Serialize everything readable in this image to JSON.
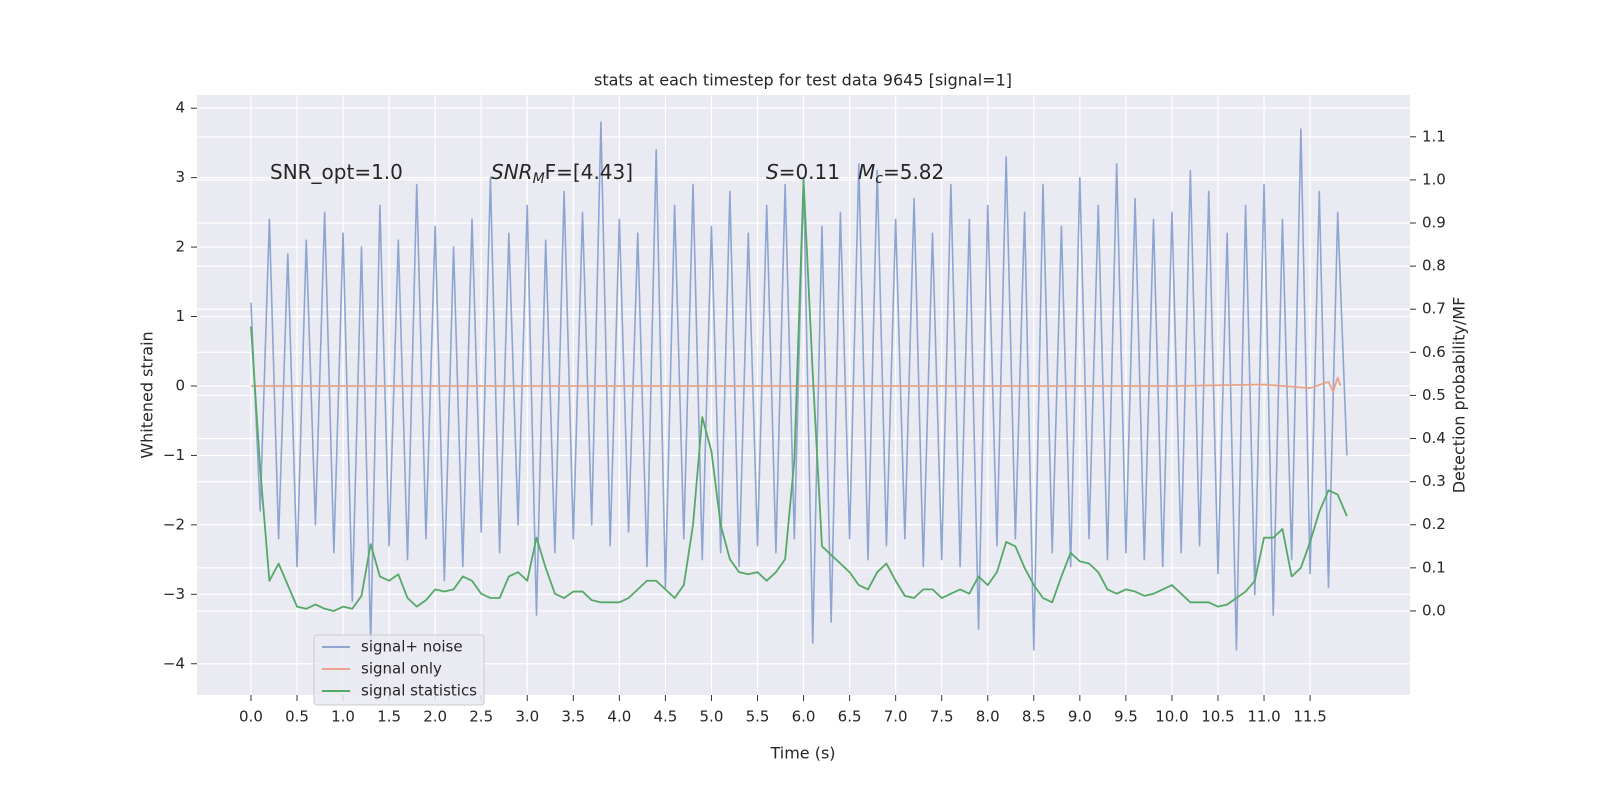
{
  "chart_data": {
    "type": "line",
    "title": "stats at each timestep for test data 9645 [signal=1]",
    "xlabel": "Time (s)",
    "ylabel": "Whitened strain",
    "y2label": "Detection probability/MF",
    "xlim": [
      -0.586,
      12.585
    ],
    "ylim": [
      -4.45,
      4.19
    ],
    "y2lim": [
      -0.195,
      1.197
    ],
    "xticks": [
      {
        "value": 0,
        "label": "0.0"
      },
      0.5,
      {
        "value": 1,
        "label": "1.0"
      },
      1.5,
      {
        "value": 2,
        "label": "2.0"
      },
      2.5,
      {
        "value": 3,
        "label": "3.0"
      },
      3.5,
      {
        "value": 4,
        "label": "4.0"
      },
      4.5,
      {
        "value": 5,
        "label": "5.0"
      },
      5.5,
      {
        "value": 6,
        "label": "6.0"
      },
      6.5,
      {
        "value": 7,
        "label": "7.0"
      },
      7.5,
      {
        "value": 8,
        "label": "8.0"
      },
      8.5,
      {
        "value": 9,
        "label": "9.0"
      },
      9.5,
      {
        "value": 10,
        "label": "10.0"
      },
      10.5,
      {
        "value": 11,
        "label": "11.0"
      },
      11.5
    ],
    "yticks": [
      {
        "value": -4,
        "label": "−4"
      },
      {
        "value": -3,
        "label": "−3"
      },
      {
        "value": -2,
        "label": "−2"
      },
      {
        "value": -1,
        "label": "−1"
      },
      0,
      1,
      2,
      3,
      4
    ],
    "y2ticks": [
      {
        "value": 0,
        "label": "0.0"
      },
      0.1,
      0.2,
      0.3,
      0.4,
      0.5,
      0.6,
      0.7,
      0.8,
      0.9,
      {
        "value": 1,
        "label": "1.0"
      },
      1.1
    ],
    "grid": true,
    "legend": "lower left",
    "annotations": [
      {
        "text": "SNR_opt=1.0"
      },
      {
        "base": "SNR",
        "sub": "M",
        "tail": "F=[4.43]",
        "italic": true
      },
      {
        "base": "S",
        "tail": "=0.11",
        "italic": true
      },
      {
        "base": "M",
        "sub": "c",
        "tail": "=5.82",
        "italic": true
      }
    ],
    "series": [
      {
        "name": "signal+ noise",
        "color": "#8fa5d1",
        "x": [
          0,
          0.1,
          0.2,
          0.3,
          0.4,
          0.5,
          0.6,
          0.7,
          0.8,
          0.9,
          1,
          1.1,
          1.2,
          1.3,
          1.4,
          1.5,
          1.6,
          1.7,
          1.8,
          1.9,
          2,
          2.1,
          2.2,
          2.3,
          2.4,
          2.5,
          2.6,
          2.7,
          2.8,
          2.9,
          3,
          3.1,
          3.2,
          3.3,
          3.4,
          3.5,
          3.6,
          3.7,
          3.8,
          3.9,
          4,
          4.1,
          4.2,
          4.3,
          4.4,
          4.5,
          4.6,
          4.7,
          4.8,
          4.9,
          5,
          5.1,
          5.2,
          5.3,
          5.4,
          5.5,
          5.6,
          5.7,
          5.8,
          5.9,
          6,
          6.1,
          6.2,
          6.3,
          6.4,
          6.5,
          6.6,
          6.7,
          6.8,
          6.9,
          7,
          7.1,
          7.2,
          7.3,
          7.4,
          7.5,
          7.6,
          7.7,
          7.8,
          7.9,
          8,
          8.1,
          8.2,
          8.3,
          8.4,
          8.5,
          8.6,
          8.7,
          8.8,
          8.9,
          9,
          9.1,
          9.2,
          9.3,
          9.4,
          9.5,
          9.6,
          9.7,
          9.8,
          9.9,
          10,
          10.1,
          10.2,
          10.3,
          10.4,
          10.5,
          10.6,
          10.7,
          10.8,
          10.9,
          11,
          11.1,
          11.2,
          11.3,
          11.4,
          11.5,
          11.6,
          11.7,
          11.8,
          11.9
        ],
        "values": [
          1.2,
          -1.8,
          2.4,
          -2.2,
          1.9,
          -2.6,
          2.1,
          -2.0,
          2.5,
          -2.4,
          2.2,
          -3.1,
          2.0,
          -3.7,
          2.6,
          -2.3,
          2.1,
          -2.5,
          2.9,
          -2.2,
          2.3,
          -2.8,
          2.0,
          -2.6,
          2.4,
          -2.1,
          3.0,
          -2.4,
          2.2,
          -2.0,
          2.6,
          -3.3,
          2.1,
          -2.4,
          2.8,
          -2.2,
          2.5,
          -2.0,
          3.8,
          -2.3,
          2.4,
          -2.1,
          2.2,
          -2.6,
          3.4,
          -2.9,
          2.6,
          -2.2,
          2.9,
          -2.5,
          2.3,
          -2.4,
          2.8,
          -2.6,
          2.2,
          -2.3,
          2.6,
          -2.4,
          2.9,
          -2.2,
          3.0,
          -3.7,
          2.3,
          -3.4,
          2.5,
          -2.2,
          3.2,
          -2.5,
          3.1,
          -2.3,
          2.4,
          -2.2,
          2.7,
          -2.6,
          2.2,
          -2.5,
          2.9,
          -2.6,
          2.4,
          -3.5,
          2.6,
          -2.3,
          3.3,
          -2.2,
          2.5,
          -3.8,
          2.9,
          -2.4,
          2.3,
          -2.6,
          3.0,
          -2.2,
          2.6,
          -2.5,
          3.2,
          -2.4,
          2.7,
          -2.5,
          2.4,
          -2.6,
          2.5,
          -2.4,
          3.1,
          -2.3,
          2.8,
          -2.7,
          2.2,
          -3.8,
          2.6,
          -3.0,
          2.9,
          -3.3,
          2.4,
          -2.5,
          3.7,
          -2.7,
          2.8,
          -2.9,
          2.5,
          -1.0
        ]
      },
      {
        "name": "signal only",
        "color": "#e8a58a",
        "x": [
          0,
          10,
          11,
          11.5,
          11.7,
          11.75,
          11.8,
          11.83
        ],
        "values": [
          0,
          0,
          0.02,
          -0.03,
          0.06,
          -0.08,
          0.12,
          0
        ]
      },
      {
        "name": "signal statistics",
        "color": "#55a868",
        "axis": "y2",
        "x": [
          0,
          0.1,
          0.2,
          0.3,
          0.4,
          0.5,
          0.6,
          0.7,
          0.8,
          0.9,
          1,
          1.1,
          1.2,
          1.3,
          1.4,
          1.5,
          1.6,
          1.7,
          1.8,
          1.9,
          2,
          2.1,
          2.2,
          2.3,
          2.4,
          2.5,
          2.6,
          2.7,
          2.8,
          2.9,
          3,
          3.1,
          3.2,
          3.3,
          3.4,
          3.5,
          3.6,
          3.7,
          3.8,
          3.9,
          4,
          4.1,
          4.2,
          4.3,
          4.4,
          4.5,
          4.6,
          4.7,
          4.8,
          4.9,
          5,
          5.1,
          5.2,
          5.3,
          5.4,
          5.5,
          5.6,
          5.7,
          5.8,
          5.9,
          6,
          6.1,
          6.2,
          6.3,
          6.4,
          6.5,
          6.6,
          6.7,
          6.8,
          6.9,
          7,
          7.1,
          7.2,
          7.3,
          7.4,
          7.5,
          7.6,
          7.7,
          7.8,
          7.9,
          8,
          8.1,
          8.2,
          8.3,
          8.4,
          8.5,
          8.6,
          8.7,
          8.8,
          8.9,
          9,
          9.1,
          9.2,
          9.3,
          9.4,
          9.5,
          9.6,
          9.7,
          9.8,
          9.9,
          10,
          10.1,
          10.2,
          10.3,
          10.4,
          10.5,
          10.6,
          10.7,
          10.8,
          10.9,
          11,
          11.1,
          11.2,
          11.3,
          11.4,
          11.5,
          11.6,
          11.7,
          11.8,
          11.9
        ],
        "values": [
          0.66,
          0.33,
          0.07,
          0.11,
          0.06,
          0.01,
          0.005,
          0.015,
          0.005,
          0.0,
          0.01,
          0.005,
          0.035,
          0.155,
          0.08,
          0.07,
          0.085,
          0.03,
          0.01,
          0.025,
          0.05,
          0.045,
          0.05,
          0.08,
          0.07,
          0.04,
          0.03,
          0.03,
          0.08,
          0.09,
          0.07,
          0.17,
          0.1,
          0.04,
          0.03,
          0.045,
          0.045,
          0.025,
          0.02,
          0.02,
          0.02,
          0.03,
          0.05,
          0.07,
          0.07,
          0.05,
          0.03,
          0.06,
          0.2,
          0.45,
          0.37,
          0.2,
          0.12,
          0.09,
          0.085,
          0.09,
          0.07,
          0.09,
          0.12,
          0.35,
          1.0,
          0.55,
          0.15,
          0.13,
          0.11,
          0.09,
          0.06,
          0.05,
          0.09,
          0.11,
          0.07,
          0.035,
          0.03,
          0.05,
          0.05,
          0.03,
          0.04,
          0.05,
          0.04,
          0.08,
          0.06,
          0.09,
          0.16,
          0.15,
          0.1,
          0.06,
          0.03,
          0.02,
          0.08,
          0.135,
          0.115,
          0.11,
          0.09,
          0.05,
          0.04,
          0.05,
          0.045,
          0.035,
          0.04,
          0.05,
          0.06,
          0.04,
          0.02,
          0.02,
          0.02,
          0.01,
          0.015,
          0.03,
          0.045,
          0.07,
          0.17,
          0.17,
          0.19,
          0.08,
          0.1,
          0.16,
          0.23,
          0.28,
          0.27,
          0.22
        ]
      }
    ]
  }
}
